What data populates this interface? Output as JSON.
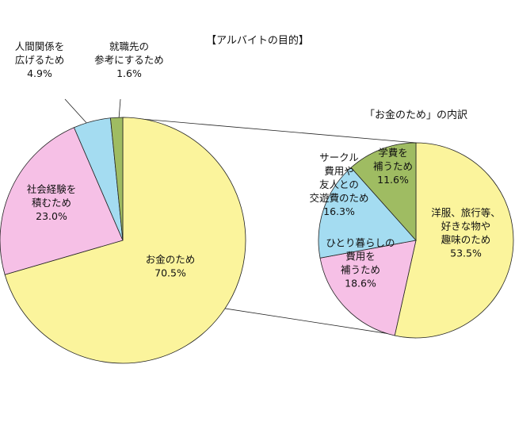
{
  "chart_data": [
    {
      "type": "pie",
      "title": "【アルバイトの目的】",
      "slices": [
        {
          "label": [
            "お金のため"
          ],
          "value": 70.5,
          "value_text": "70.5%",
          "color": "#fbf49c"
        },
        {
          "label": [
            "社会経験を",
            "積むため"
          ],
          "value": 23.0,
          "value_text": "23.0%",
          "color": "#f6c0e6"
        },
        {
          "label": [
            "人間関係を",
            "広げるため"
          ],
          "value": 4.9,
          "value_text": "4.9%",
          "color": "#a4dcf1"
        },
        {
          "label": [
            "就職先の",
            "参考にするため"
          ],
          "value": 1.6,
          "value_text": "1.6%",
          "color": "#9fbc62"
        }
      ]
    },
    {
      "type": "pie",
      "title": "「お金のため」の内訳",
      "slices": [
        {
          "label": [
            "洋服、旅行等、",
            "好きな物や",
            "趣味のため"
          ],
          "value": 53.5,
          "value_text": "53.5%",
          "color": "#fbf49c"
        },
        {
          "label": [
            "ひとり暮らしの",
            "費用を",
            "補うため"
          ],
          "value": 18.6,
          "value_text": "18.6%",
          "color": "#f6c0e6"
        },
        {
          "label": [
            "サークル",
            "費用や",
            "友人との",
            "交遊費のため"
          ],
          "value": 16.3,
          "value_text": "16.3%",
          "color": "#a4dcf1"
        },
        {
          "label": [
            "学費を",
            "補うため"
          ],
          "value": 11.6,
          "value_text": "11.6%",
          "color": "#9fbc62"
        }
      ]
    }
  ]
}
